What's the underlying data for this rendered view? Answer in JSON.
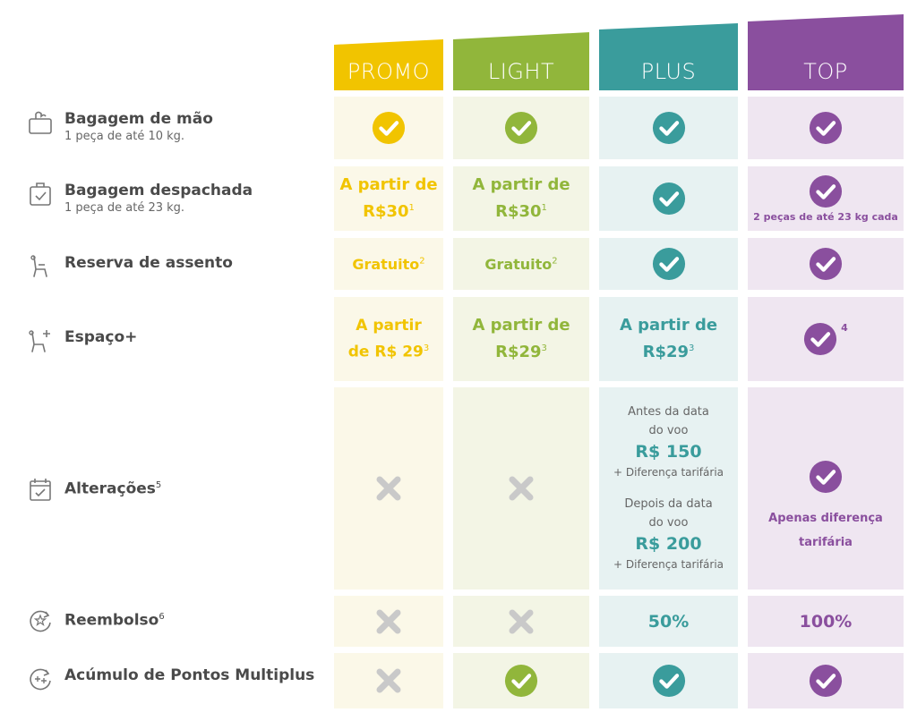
{
  "columns": [
    {
      "name": "PROMO",
      "color": "#f1c400"
    },
    {
      "name": "LIGHT",
      "color": "#91b63b"
    },
    {
      "name": "PLUS",
      "color": "#3a9c9c"
    },
    {
      "name": "TOP",
      "color": "#8a4f9e"
    }
  ],
  "rows": {
    "hand_bag": {
      "title": "Bagagem de mão",
      "sub": "1 peça de até 10 kg.",
      "icon": "hand-bag-icon"
    },
    "checked_bag": {
      "title": "Bagagem despachada",
      "sub": "1 peça de até 23 kg.",
      "icon": "checked-bag-icon",
      "promo_line1": "A partir de",
      "promo_line2": "R$30",
      "promo_sup": "1",
      "light_line1": "A partir de",
      "light_line2": "R$30",
      "light_sup": "1",
      "top_note": "2 peças de até 23 kg cada"
    },
    "seat": {
      "title": "Reserva de assento",
      "icon": "seat-icon",
      "promo_text": "Gratuito",
      "promo_sup": "2",
      "light_text": "Gratuito",
      "light_sup": "2"
    },
    "space": {
      "title": "Espaço+",
      "icon": "seat-plus-icon",
      "promo_line1": "A partir",
      "promo_line2": "de R$ 29",
      "promo_sup": "3",
      "light_line1": "A partir de",
      "light_line2": "R$29",
      "light_sup": "3",
      "plus_line1": "A partir de",
      "plus_line2": "R$29",
      "plus_sup": "3",
      "top_sup": "4"
    },
    "changes": {
      "title": "Alterações",
      "title_sup": "5",
      "icon": "calendar-icon",
      "plus_before_1": "Antes da data",
      "plus_before_2": "do voo",
      "plus_before_price": "R$ 150",
      "plus_before_note": "+ Diferença tarifária",
      "plus_after_1": "Depois da data",
      "plus_after_2": "do voo",
      "plus_after_price": "R$ 200",
      "plus_after_note": "+ Diferença tarifária",
      "top_line1": "Apenas diferença",
      "top_line2": "tarifária"
    },
    "refund": {
      "title": "Reembolso",
      "title_sup": "6",
      "icon": "refund-icon",
      "plus_value": "50%",
      "top_value": "100%"
    },
    "points": {
      "title": "Acúmulo de Pontos Multiplus",
      "icon": "points-icon"
    }
  }
}
